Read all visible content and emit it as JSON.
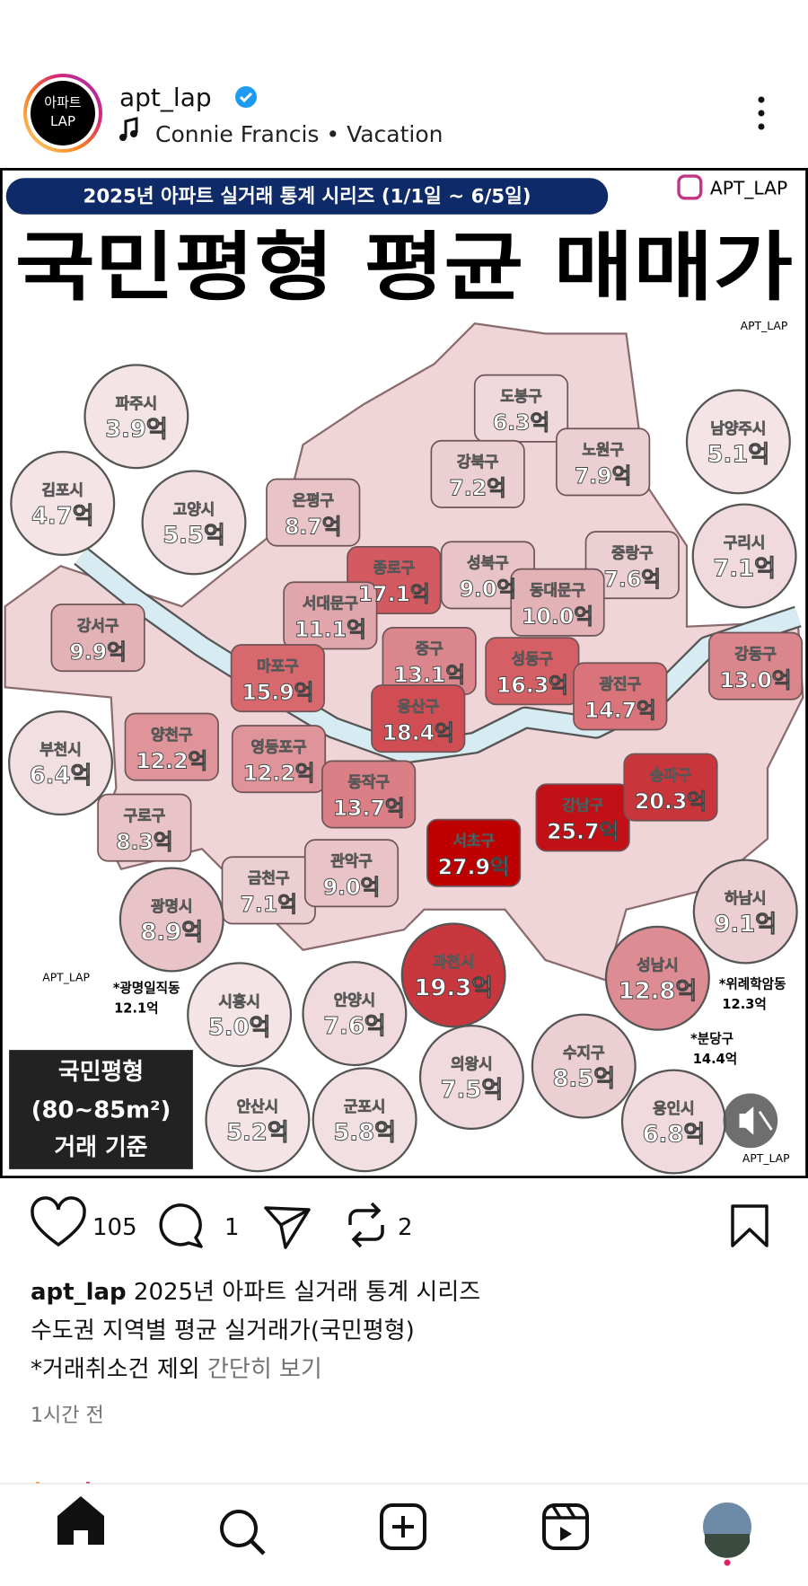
{
  "post": {
    "avatar": [
      "아파트",
      "LAP"
    ],
    "username": "apt_lap",
    "music": "Connie Francis • Vacation"
  },
  "image": {
    "subtitle": "2025년 아파트 실거래 통계 시리즈 (1/1일 ~ 6/5일)",
    "title": "국민평형 평균 매매가",
    "watermark": "APT_LAP",
    "cities": [
      {
        "name": "파주시",
        "price": "3.9억",
        "fill": "#f4e4e6"
      },
      {
        "name": "김포시",
        "price": "4.7억",
        "fill": "#f4e4e6"
      },
      {
        "name": "고양시",
        "price": "5.5억",
        "fill": "#f2dfe1"
      },
      {
        "name": "남양주시",
        "price": "5.1억",
        "fill": "#f4e4e6"
      },
      {
        "name": "구리시",
        "price": "7.1억",
        "fill": "#f1dadd"
      },
      {
        "name": "부천시",
        "price": "6.4억",
        "fill": "#f2dfe1"
      },
      {
        "name": "광명시",
        "price": "8.9억",
        "fill": "#e8c3c7"
      },
      {
        "name": "하남시",
        "price": "9.1억",
        "fill": "#eccfd2"
      },
      {
        "name": "과천시",
        "price": "19.3억",
        "fill": "#c8373d"
      },
      {
        "name": "성남시",
        "price": "12.8억",
        "fill": "#dc8c92"
      },
      {
        "name": "시흥시",
        "price": "5.0억",
        "fill": "#f4e4e6"
      },
      {
        "name": "안양시",
        "price": "7.6억",
        "fill": "#f1dadd"
      },
      {
        "name": "의왕시",
        "price": "7.5억",
        "fill": "#f1dadd"
      },
      {
        "name": "수지구",
        "price": "8.5억",
        "fill": "#eccfd2"
      },
      {
        "name": "안산시",
        "price": "5.2억",
        "fill": "#f4e4e6"
      },
      {
        "name": "군포시",
        "price": "5.8억",
        "fill": "#f2dfe1"
      },
      {
        "name": "용인시",
        "price": "6.8억",
        "fill": "#f1dadd"
      }
    ],
    "districts": [
      {
        "name": "도봉구",
        "price": "6.3억",
        "fill": "#f0d9dc"
      },
      {
        "name": "노원구",
        "price": "7.9억",
        "fill": "#eccfd2"
      },
      {
        "name": "강북구",
        "price": "7.2억",
        "fill": "#eccfd2"
      },
      {
        "name": "은평구",
        "price": "8.7억",
        "fill": "#e8c3c7"
      },
      {
        "name": "종로구",
        "price": "17.1억",
        "fill": "#d25a60"
      },
      {
        "name": "성북구",
        "price": "9.0억",
        "fill": "#e8c3c7"
      },
      {
        "name": "중랑구",
        "price": "7.6억",
        "fill": "#eccfd2"
      },
      {
        "name": "동대문구",
        "price": "10.0억",
        "fill": "#e3b2b7"
      },
      {
        "name": "서대문구",
        "price": "11.1억",
        "fill": "#e0a6ab"
      },
      {
        "name": "강서구",
        "price": "9.9억",
        "fill": "#e3b2b7"
      },
      {
        "name": "마포구",
        "price": "15.9억",
        "fill": "#d6686e"
      },
      {
        "name": "중구",
        "price": "13.1억",
        "fill": "#db868c"
      },
      {
        "name": "성동구",
        "price": "16.3억",
        "fill": "#d45f65"
      },
      {
        "name": "광진구",
        "price": "14.7억",
        "fill": "#d8747a"
      },
      {
        "name": "강동구",
        "price": "13.0억",
        "fill": "#db868c"
      },
      {
        "name": "용산구",
        "price": "18.4억",
        "fill": "#cf4d53"
      },
      {
        "name": "양천구",
        "price": "12.2억",
        "fill": "#de9499"
      },
      {
        "name": "영등포구",
        "price": "12.2억",
        "fill": "#de9499"
      },
      {
        "name": "동작구",
        "price": "13.7억",
        "fill": "#da7f85"
      },
      {
        "name": "강남구",
        "price": "25.7억",
        "fill": "#c30f16"
      },
      {
        "name": "송파구",
        "price": "20.3억",
        "fill": "#c8353b"
      },
      {
        "name": "서초구",
        "price": "27.9억",
        "fill": "#bf0000"
      },
      {
        "name": "구로구",
        "price": "8.3억",
        "fill": "#e8c3c7"
      },
      {
        "name": "금천구",
        "price": "7.1억",
        "fill": "#eccfd2"
      },
      {
        "name": "관악구",
        "price": "9.0억",
        "fill": "#e8c3c7"
      }
    ],
    "notes": [
      [
        "*광명일직동",
        "12.1억"
      ],
      [
        "*위례학암동",
        "12.3억"
      ],
      [
        "*분당구",
        "14.4억"
      ]
    ],
    "legend": [
      "국민평형",
      "(80~85m²)",
      "거래 기준"
    ]
  },
  "actions": {
    "likes": "105",
    "comments": "1",
    "reposts": "2"
  },
  "caption": {
    "username": "apt_lap",
    "lines": [
      "2025년 아파트 실거래 통계 시리즈",
      "수도권 지역별 평균 실거래가(국민평형)",
      "*거래취소건 제외"
    ],
    "more": "간단히 보기"
  },
  "time": "1시간 전"
}
